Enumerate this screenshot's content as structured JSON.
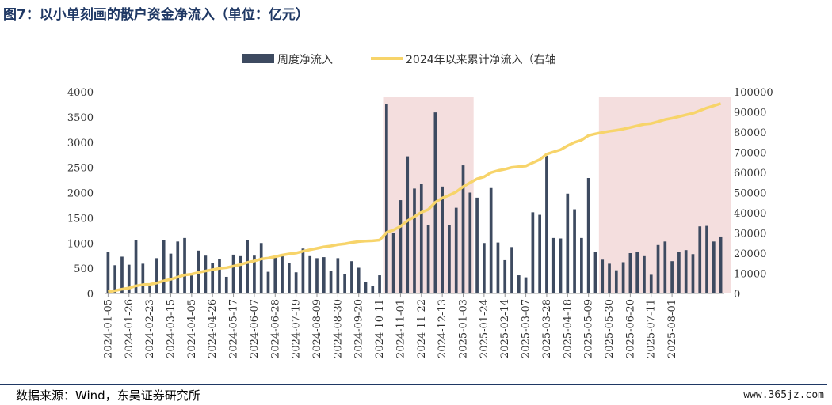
{
  "title": "图7：以小单刻画的散户资金净流入（单位：亿元）",
  "source": "数据来源：Wind，东吴证券研究所",
  "watermark": "www.365jz.com",
  "colors": {
    "bar": "#3d4a60",
    "line": "#f7d46a",
    "highlight": "#f4dede",
    "title": "#1f3864"
  },
  "chart_data": {
    "type": "bar+line",
    "legend": [
      "周度净流入",
      "2024年以来累计净流入（右轴"
    ],
    "legend_placement": "top-center",
    "ylim_left": [
      0,
      4000
    ],
    "ylim_right": [
      0,
      100000
    ],
    "yticks_left": [
      "0",
      "500",
      "1000",
      "1500",
      "2000",
      "2500",
      "3000",
      "3500",
      "4000"
    ],
    "yticks_right": [
      "0",
      "10000",
      "20000",
      "30000",
      "40000",
      "50000",
      "60000",
      "70000",
      "80000",
      "90000",
      "100000"
    ],
    "xtick_labels": [
      "2024-01-05",
      "2024-01-26",
      "2024-02-23",
      "2024-03-15",
      "2024-04-05",
      "2024-04-26",
      "2024-05-17",
      "2024-06-07",
      "2024-06-28",
      "2024-07-19",
      "2024-08-09",
      "2024-08-30",
      "2024-09-20",
      "2024-10-11",
      "2024-11-01",
      "2024-11-22",
      "2024-12-13",
      "2025-01-03",
      "2025-01-24",
      "2025-02-14",
      "2025-03-07",
      "2025-03-28",
      "2025-04-18",
      "2025-05-09",
      "2025-05-30",
      "2025-06-20",
      "2025-07-11",
      "2025-08-01"
    ],
    "highlight_ranges": [
      [
        40,
        52
      ],
      [
        71,
        89
      ]
    ],
    "weekly_values": [
      830,
      560,
      730,
      570,
      1060,
      590,
      160,
      700,
      1060,
      790,
      1030,
      1100,
      380,
      850,
      750,
      600,
      680,
      330,
      770,
      740,
      1060,
      750,
      1000,
      430,
      720,
      770,
      600,
      420,
      890,
      740,
      700,
      720,
      440,
      700,
      380,
      640,
      510,
      220,
      150,
      360,
      3760,
      1200,
      1850,
      2720,
      2080,
      2170,
      1360,
      3590,
      2120,
      1360,
      1700,
      2540,
      2000,
      1900,
      1000,
      2090,
      1010,
      660,
      920,
      360,
      320,
      1610,
      1560,
      2730,
      1100,
      1090,
      1980,
      1670,
      1100,
      2290,
      830,
      670,
      590,
      460,
      620,
      800,
      830,
      740,
      370,
      960,
      1030,
      640,
      830,
      860,
      780,
      1330,
      1340,
      1030,
      1130
    ],
    "cumulative_values": [
      830,
      1390,
      2120,
      2690,
      3750,
      4340,
      4500,
      5200,
      6260,
      7050,
      8080,
      9180,
      9560,
      10410,
      11160,
      11760,
      12440,
      12770,
      13540,
      14280,
      15340,
      16090,
      17090,
      17520,
      18240,
      19010,
      19610,
      20030,
      20920,
      21660,
      22360,
      23080,
      23520,
      24220,
      24600,
      25240,
      25750,
      25970,
      26120,
      26480,
      30240,
      31440,
      33290,
      36010,
      38090,
      40260,
      41620,
      45210,
      47330,
      48690,
      50390,
      52930,
      54930,
      56830,
      57830,
      59920,
      60930,
      61590,
      62510,
      62870,
      63190,
      64800,
      66360,
      69090,
      70190,
      71280,
      73260,
      74930,
      76030,
      78320,
      79150,
      79820,
      80410,
      80870,
      81490,
      82290,
      83120,
      83860,
      84230,
      85190,
      86220,
      86860,
      87690,
      88550,
      89330,
      90660,
      92000,
      93030,
      94160
    ]
  }
}
